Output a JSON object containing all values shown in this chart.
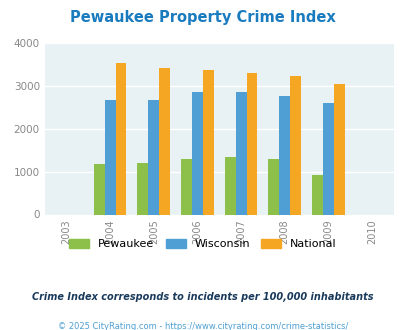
{
  "title": "Pewaukee Property Crime Index",
  "title_color": "#1a7bbf",
  "years": [
    2003,
    2004,
    2005,
    2006,
    2007,
    2008,
    2009,
    2010
  ],
  "bar_years": [
    2004,
    2005,
    2006,
    2007,
    2008,
    2009
  ],
  "pewaukee": [
    1175,
    1200,
    1305,
    1330,
    1305,
    910
  ],
  "wisconsin": [
    2680,
    2680,
    2845,
    2845,
    2760,
    2610
  ],
  "national": [
    3530,
    3420,
    3360,
    3295,
    3220,
    3040
  ],
  "pewaukee_color": "#8dc04b",
  "wisconsin_color": "#4f9fd4",
  "national_color": "#f5a623",
  "bg_color": "#e8f2f5",
  "ylim": [
    0,
    4000
  ],
  "yticks": [
    0,
    1000,
    2000,
    3000,
    4000
  ],
  "bar_width": 0.25,
  "legend_labels": [
    "Pewaukee",
    "Wisconsin",
    "National"
  ],
  "footnote1": "Crime Index corresponds to incidents per 100,000 inhabitants",
  "footnote2": "© 2025 CityRating.com - https://www.cityrating.com/crime-statistics/",
  "footnote1_color": "#1a3a5c",
  "footnote2_color": "#4f9fd4",
  "grid_color": "#ffffff",
  "tick_label_color": "#888888"
}
